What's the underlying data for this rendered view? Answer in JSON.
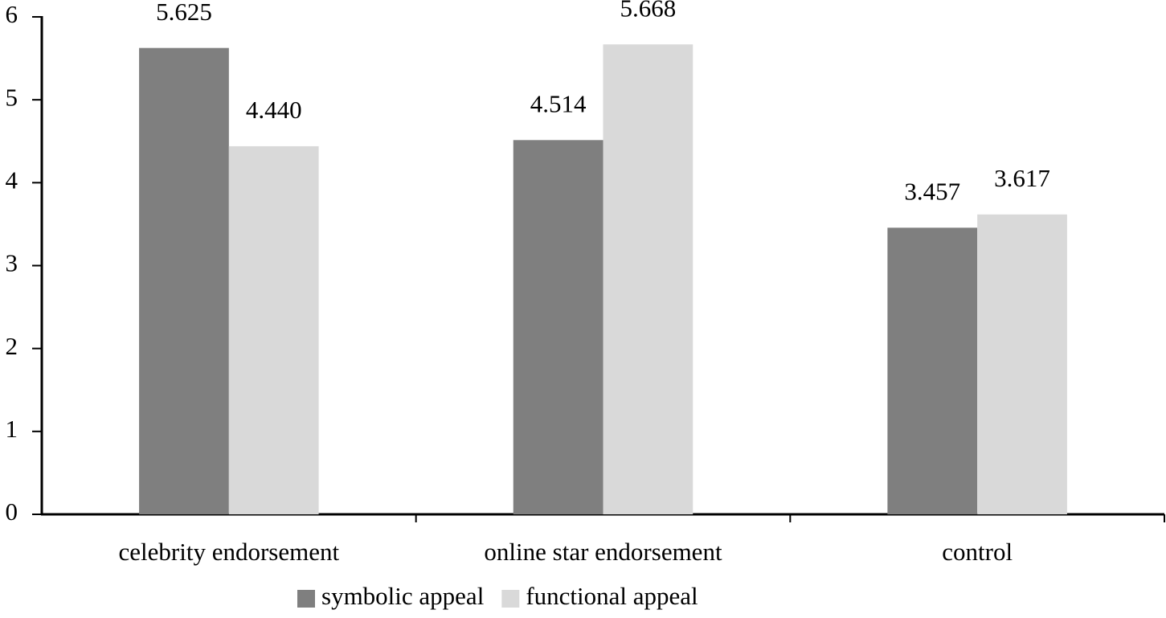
{
  "chart_data": {
    "type": "bar",
    "categories": [
      "celebrity endorsement",
      "online star endorsement",
      "control"
    ],
    "series": [
      {
        "name": "symbolic appeal",
        "color": "#7f7f7f",
        "values": [
          5.625,
          4.514,
          3.457
        ],
        "value_labels": [
          "5.625",
          "4.514",
          "3.457"
        ]
      },
      {
        "name": "functional appeal",
        "color": "#d9d9d9",
        "values": [
          4.44,
          5.668,
          3.617
        ],
        "value_labels": [
          "4.440",
          "5.668",
          "3.617"
        ]
      }
    ],
    "ylim": [
      0,
      6
    ],
    "yticks": [
      0,
      1,
      2,
      3,
      4,
      5,
      6
    ],
    "grid": false,
    "legend": "bottom"
  }
}
